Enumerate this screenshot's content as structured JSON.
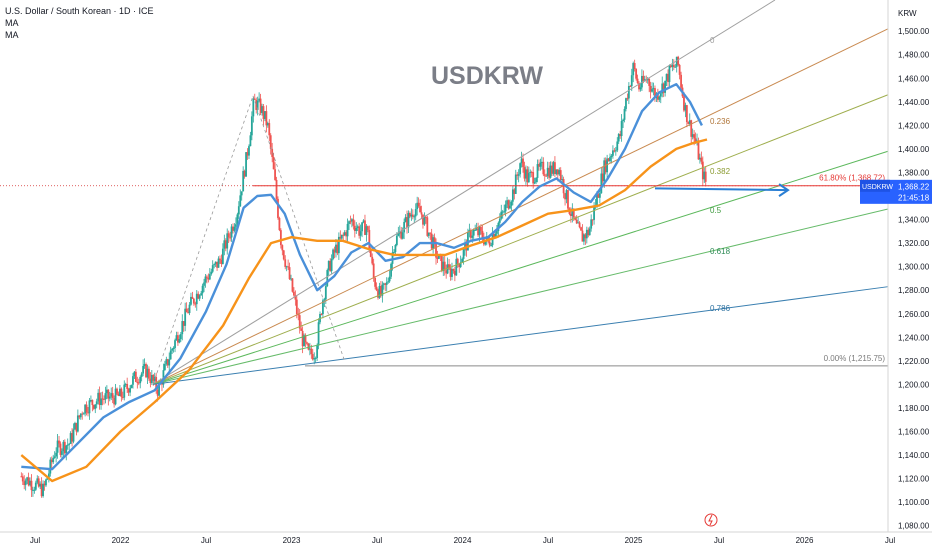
{
  "header": {
    "symbol_line": "U.S. Dollar / South Korean · 1D · ICE",
    "indicators": [
      "MA",
      "MA"
    ]
  },
  "watermark": "USDKRW",
  "currency_label": "KRW",
  "price_badge": {
    "symbol": "USDKRW",
    "price": "1,368.22",
    "countdown": "21:45:18"
  },
  "fib_labels": {
    "ray_0": "0",
    "ray_236": "0.236",
    "ray_382": "0.382",
    "ray_5": "0.5",
    "ray_618": "0.618",
    "ray_786": "0.786",
    "level_618": "61.80% (1,368.72)",
    "level_0": "0.00% (1,215.75)"
  },
  "colors": {
    "up_candle": "#26a69a",
    "down_candle": "#ef5350",
    "ma_fast": "#4a90d9",
    "ma_slow": "#f7931a",
    "arrow": "#2a7fd4",
    "badge": "#2962ff",
    "fib_red": "#e53935"
  },
  "chart_data": {
    "type": "candlestick",
    "title": "USDKRW",
    "symbol": "U.S. Dollar / South Korean · 1D · ICE",
    "ylabel": "KRW",
    "ylim": [
      1070,
      1515
    ],
    "y_ticks": [
      "1,080.00",
      "1,100.00",
      "1,120.00",
      "1,140.00",
      "1,160.00",
      "1,180.00",
      "1,200.00",
      "1,220.00",
      "1,240.00",
      "1,260.00",
      "1,280.00",
      "1,300.00",
      "1,320.00",
      "1,340.00",
      "1,360.00",
      "1,380.00",
      "1,400.00",
      "1,420.00",
      "1,440.00",
      "1,460.00",
      "1,480.00",
      "1,500.00"
    ],
    "x_ticks": [
      "Jul",
      "2022",
      "Jul",
      "2023",
      "Jul",
      "2024",
      "Jul",
      "2025",
      "Jul",
      "2026",
      "Jul"
    ],
    "close_path": [
      [
        2021.42,
        1122
      ],
      [
        2021.55,
        1110
      ],
      [
        2021.62,
        1145
      ],
      [
        2021.7,
        1150
      ],
      [
        2021.78,
        1180
      ],
      [
        2021.88,
        1188
      ],
      [
        2022.0,
        1190
      ],
      [
        2022.08,
        1205
      ],
      [
        2022.15,
        1212
      ],
      [
        2022.22,
        1195
      ],
      [
        2022.3,
        1230
      ],
      [
        2022.4,
        1265
      ],
      [
        2022.5,
        1290
      ],
      [
        2022.58,
        1305
      ],
      [
        2022.68,
        1345
      ],
      [
        2022.74,
        1395
      ],
      [
        2022.78,
        1440
      ],
      [
        2022.82,
        1435
      ],
      [
        2022.86,
        1420
      ],
      [
        2022.9,
        1375
      ],
      [
        2022.94,
        1320
      ],
      [
        2022.98,
        1295
      ],
      [
        2023.02,
        1270
      ],
      [
        2023.06,
        1240
      ],
      [
        2023.1,
        1225
      ],
      [
        2023.14,
        1228
      ],
      [
        2023.18,
        1270
      ],
      [
        2023.22,
        1300
      ],
      [
        2023.26,
        1315
      ],
      [
        2023.3,
        1325
      ],
      [
        2023.35,
        1340
      ],
      [
        2023.4,
        1330
      ],
      [
        2023.44,
        1335
      ],
      [
        2023.48,
        1290
      ],
      [
        2023.52,
        1275
      ],
      [
        2023.56,
        1285
      ],
      [
        2023.6,
        1320
      ],
      [
        2023.66,
        1335
      ],
      [
        2023.72,
        1350
      ],
      [
        2023.76,
        1345
      ],
      [
        2023.8,
        1330
      ],
      [
        2023.86,
        1305
      ],
      [
        2023.92,
        1295
      ],
      [
        2023.96,
        1300
      ],
      [
        2024.0,
        1310
      ],
      [
        2024.05,
        1330
      ],
      [
        2024.1,
        1328
      ],
      [
        2024.15,
        1320
      ],
      [
        2024.22,
        1340
      ],
      [
        2024.3,
        1365
      ],
      [
        2024.34,
        1390
      ],
      [
        2024.38,
        1375
      ],
      [
        2024.42,
        1378
      ],
      [
        2024.46,
        1383
      ],
      [
        2024.52,
        1382
      ],
      [
        2024.56,
        1385
      ],
      [
        2024.62,
        1352
      ],
      [
        2024.66,
        1335
      ],
      [
        2024.7,
        1325
      ],
      [
        2024.74,
        1330
      ],
      [
        2024.78,
        1355
      ],
      [
        2024.83,
        1385
      ],
      [
        2024.88,
        1400
      ],
      [
        2024.92,
        1410
      ],
      [
        2024.96,
        1445
      ],
      [
        2025.0,
        1470
      ],
      [
        2025.03,
        1452
      ],
      [
        2025.08,
        1460
      ],
      [
        2025.13,
        1445
      ],
      [
        2025.18,
        1455
      ],
      [
        2025.22,
        1468
      ],
      [
        2025.26,
        1472
      ],
      [
        2025.3,
        1435
      ],
      [
        2025.33,
        1420
      ],
      [
        2025.37,
        1402
      ],
      [
        2025.4,
        1382
      ],
      [
        2025.43,
        1368
      ]
    ],
    "series": [
      {
        "name": "MA",
        "values": [
          [
            2021.42,
            1130
          ],
          [
            2021.6,
            1128
          ],
          [
            2021.75,
            1150
          ],
          [
            2021.9,
            1172
          ],
          [
            2022.05,
            1185
          ],
          [
            2022.2,
            1195
          ],
          [
            2022.35,
            1222
          ],
          [
            2022.5,
            1262
          ],
          [
            2022.62,
            1302
          ],
          [
            2022.72,
            1350
          ],
          [
            2022.8,
            1360
          ],
          [
            2022.88,
            1361
          ],
          [
            2022.96,
            1345
          ],
          [
            2023.05,
            1310
          ],
          [
            2023.15,
            1280
          ],
          [
            2023.25,
            1292
          ],
          [
            2023.35,
            1312
          ],
          [
            2023.45,
            1320
          ],
          [
            2023.55,
            1305
          ],
          [
            2023.65,
            1308
          ],
          [
            2023.75,
            1320
          ],
          [
            2023.85,
            1320
          ],
          [
            2023.95,
            1316
          ],
          [
            2024.05,
            1322
          ],
          [
            2024.15,
            1325
          ],
          [
            2024.25,
            1338
          ],
          [
            2024.35,
            1355
          ],
          [
            2024.45,
            1368
          ],
          [
            2024.55,
            1375
          ],
          [
            2024.65,
            1363
          ],
          [
            2024.75,
            1355
          ],
          [
            2024.85,
            1375
          ],
          [
            2024.95,
            1400
          ],
          [
            2025.05,
            1432
          ],
          [
            2025.15,
            1448
          ],
          [
            2025.25,
            1455
          ],
          [
            2025.33,
            1440
          ],
          [
            2025.4,
            1420
          ]
        ]
      },
      {
        "name": "MA",
        "values": [
          [
            2021.42,
            1140
          ],
          [
            2021.6,
            1118
          ],
          [
            2021.8,
            1130
          ],
          [
            2022.0,
            1160
          ],
          [
            2022.2,
            1185
          ],
          [
            2022.4,
            1212
          ],
          [
            2022.6,
            1250
          ],
          [
            2022.75,
            1290
          ],
          [
            2022.88,
            1320
          ],
          [
            2023.0,
            1325
          ],
          [
            2023.15,
            1322
          ],
          [
            2023.3,
            1322
          ],
          [
            2023.45,
            1315
          ],
          [
            2023.6,
            1310
          ],
          [
            2023.75,
            1310
          ],
          [
            2023.9,
            1310
          ],
          [
            2024.05,
            1318
          ],
          [
            2024.2,
            1325
          ],
          [
            2024.35,
            1335
          ],
          [
            2024.5,
            1345
          ],
          [
            2024.65,
            1348
          ],
          [
            2024.8,
            1352
          ],
          [
            2024.95,
            1365
          ],
          [
            2025.1,
            1385
          ],
          [
            2025.25,
            1400
          ],
          [
            2025.35,
            1405
          ],
          [
            2025.43,
            1408
          ]
        ]
      }
    ],
    "fibonacci": {
      "price_levels": [
        {
          "label": "61.80%",
          "value": 1368.72
        },
        {
          "label": "0.00%",
          "value": 1215.75
        }
      ],
      "fan_rays": [
        "0",
        "0.236",
        "0.382",
        "0.5",
        "0.618",
        "0.786"
      ]
    },
    "grid": false,
    "last_price": 1368.22
  }
}
